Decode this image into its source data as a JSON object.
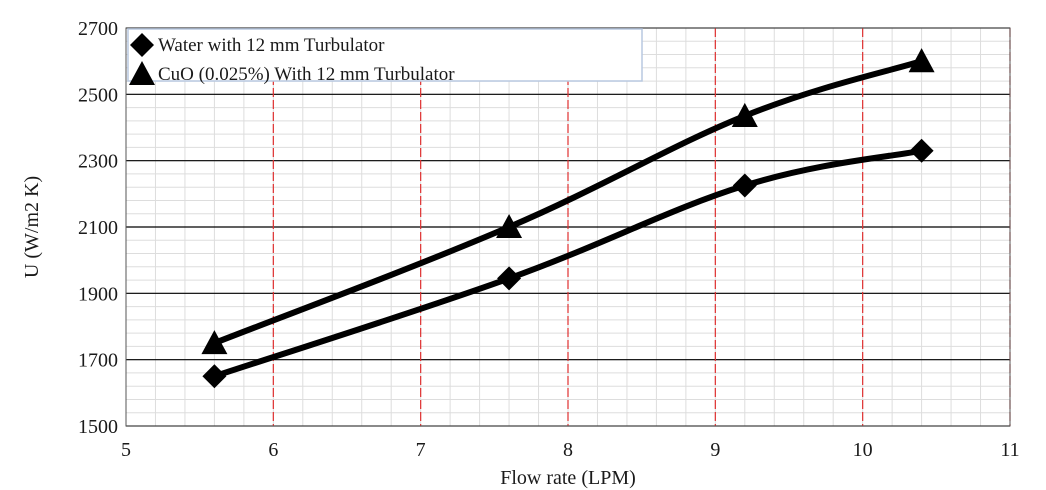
{
  "chart_data": {
    "type": "line",
    "title": "",
    "xlabel": "Flow rate (LPM)",
    "ylabel": "U (W/m2 K)",
    "xlim": [
      5,
      11
    ],
    "ylim": [
      1500,
      2700
    ],
    "xticks": [
      5,
      6,
      7,
      8,
      9,
      10,
      11
    ],
    "yticks": [
      1500,
      1700,
      1900,
      2100,
      2300,
      2500,
      2700
    ],
    "grid": true,
    "legend_position": "top-left",
    "series": [
      {
        "name": "Water with 12 mm Turbulator",
        "marker": "diamond",
        "color": "#000000",
        "x": [
          5.6,
          7.6,
          9.2,
          10.4
        ],
        "y": [
          1650,
          1945,
          2225,
          2330
        ]
      },
      {
        "name": "CuO (0.025%) With 12 mm Turbulator",
        "marker": "triangle",
        "color": "#000000",
        "x": [
          5.6,
          7.6,
          9.2,
          10.4
        ],
        "y": [
          1750,
          2100,
          2435,
          2600
        ]
      }
    ],
    "colors": {
      "major_vertical_grid": "#e03030",
      "major_horizontal_grid": "#000000",
      "minor_grid": "#dddddd",
      "line": "#000000"
    }
  }
}
